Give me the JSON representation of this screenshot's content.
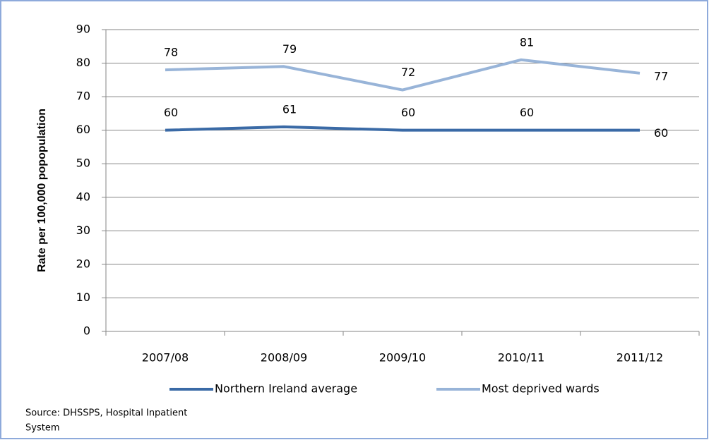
{
  "chart_data": {
    "type": "line",
    "y_label": "Rate per 100,000 popopulation",
    "categories": [
      "2007/08",
      "2008/09",
      "2009/10",
      "2010/11",
      "2011/12"
    ],
    "series": [
      {
        "name": "Northern Ireland average",
        "color": "#3a6aa6",
        "values": [
          60,
          61,
          60,
          60,
          60
        ]
      },
      {
        "name": "Most deprived wards",
        "color": "#98b4d8",
        "values": [
          78,
          79,
          72,
          81,
          77
        ]
      }
    ],
    "ylim": [
      0,
      90
    ],
    "yticks": [
      0,
      10,
      20,
      30,
      40,
      50,
      60,
      70,
      80,
      90
    ],
    "grid": true,
    "source": [
      "Source: DHSSPS, Hospital Inpatient",
      "System"
    ]
  }
}
